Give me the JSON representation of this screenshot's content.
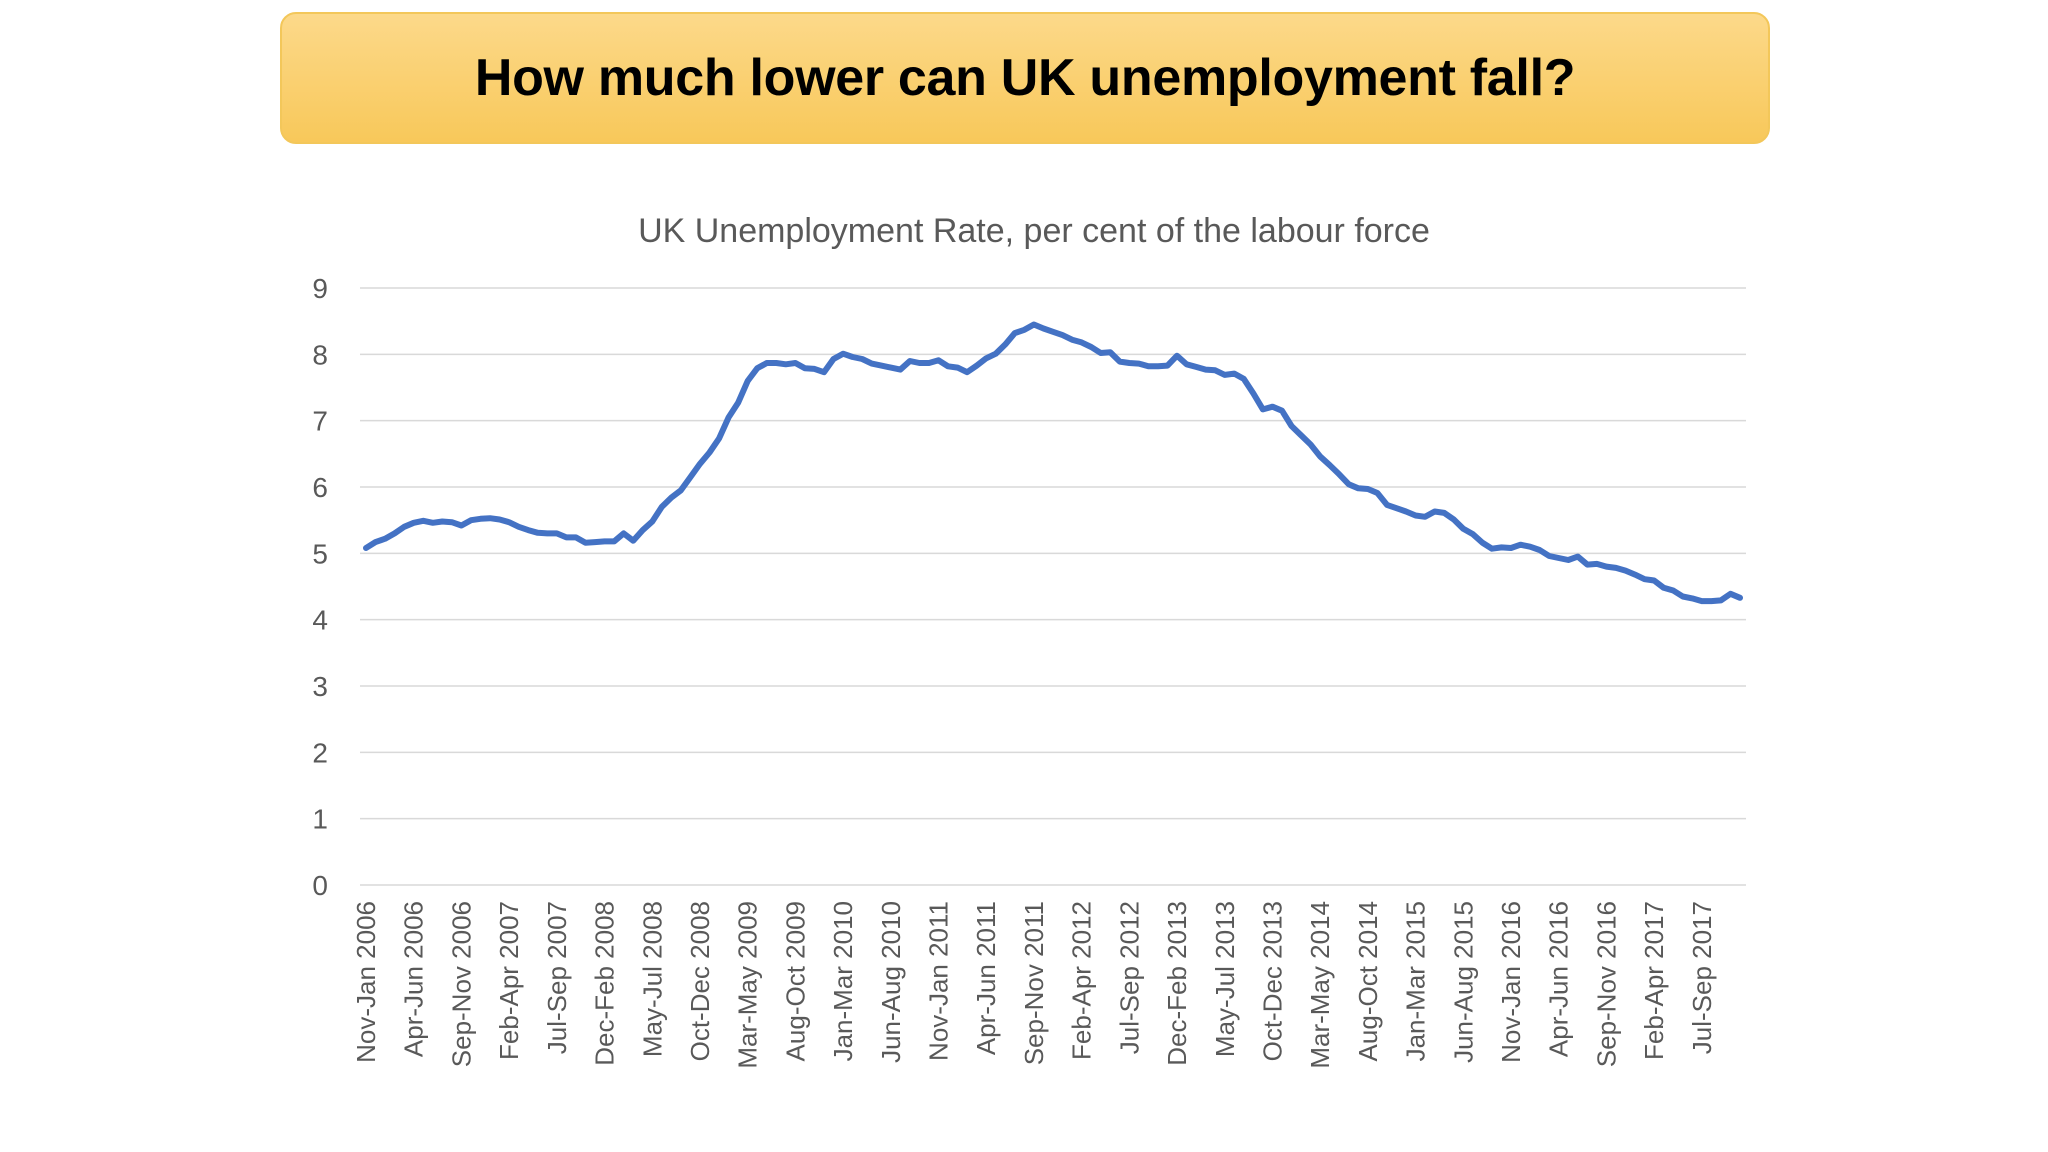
{
  "slide": {
    "title": "How much lower can UK unemployment fall?",
    "banner_color": "#fbd173"
  },
  "chart_data": {
    "type": "line",
    "title": "UK Unemployment Rate, per cent of the labour force",
    "xlabel": "",
    "ylabel": "",
    "ylim": [
      0,
      9
    ],
    "yticks": [
      0,
      1,
      2,
      3,
      4,
      5,
      6,
      7,
      8,
      9
    ],
    "grid": true,
    "legend": "none",
    "line_color": "#4472c4",
    "x_tick_labels": [
      "Nov-Jan 2006",
      "Apr-Jun 2006",
      "Sep-Nov 2006",
      "Feb-Apr 2007",
      "Jul-Sep 2007",
      "Dec-Feb 2008",
      "May-Jul 2008",
      "Oct-Dec 2008",
      "Mar-May 2009",
      "Aug-Oct 2009",
      "Jan-Mar 2010",
      "Jun-Aug 2010",
      "Nov-Jan 2011",
      "Apr-Jun 2011",
      "Sep-Nov 2011",
      "Feb-Apr 2012",
      "Jul-Sep 2012",
      "Dec-Feb 2013",
      "May-Jul 2013",
      "Oct-Dec 2013",
      "Mar-May 2014",
      "Aug-Oct 2014",
      "Jan-Mar 2015",
      "Jun-Aug 2015",
      "Nov-Jan 2016",
      "Apr-Jun 2016",
      "Sep-Nov 2016",
      "Feb-Apr 2017",
      "Jul-Sep 2017"
    ],
    "tick_every": 5,
    "series": [
      {
        "values": [
          5.08,
          5.17,
          5.22,
          5.3,
          5.4,
          5.46,
          5.49,
          5.46,
          5.48,
          5.47,
          5.42,
          5.5,
          5.52,
          5.53,
          5.51,
          5.47,
          5.4,
          5.35,
          5.31,
          5.3,
          5.3,
          5.24,
          5.24,
          5.16,
          5.17,
          5.18,
          5.18,
          5.3,
          5.19,
          5.35,
          5.48,
          5.7,
          5.84,
          5.95,
          6.15,
          6.35,
          6.52,
          6.73,
          7.05,
          7.27,
          7.6,
          7.79,
          7.87,
          7.87,
          7.85,
          7.87,
          7.79,
          7.78,
          7.73,
          7.93,
          8.01,
          7.96,
          7.93,
          7.86,
          7.83,
          7.8,
          7.77,
          7.9,
          7.87,
          7.87,
          7.91,
          7.82,
          7.8,
          7.73,
          7.83,
          7.94,
          8.01,
          8.15,
          8.32,
          8.37,
          8.45,
          8.39,
          8.34,
          8.29,
          8.22,
          8.18,
          8.11,
          8.02,
          8.03,
          7.89,
          7.87,
          7.86,
          7.82,
          7.82,
          7.83,
          7.98,
          7.85,
          7.81,
          7.77,
          7.76,
          7.69,
          7.71,
          7.63,
          7.41,
          7.17,
          7.21,
          7.15,
          6.92,
          6.78,
          6.64,
          6.46,
          6.33,
          6.19,
          6.04,
          5.98,
          5.97,
          5.91,
          5.73,
          5.68,
          5.63,
          5.57,
          5.55,
          5.63,
          5.61,
          5.51,
          5.37,
          5.29,
          5.16,
          5.07,
          5.09,
          5.08,
          5.13,
          5.1,
          5.05,
          4.96,
          4.93,
          4.9,
          4.95,
          4.83,
          4.84,
          4.8,
          4.78,
          4.74,
          4.68,
          4.61,
          4.59,
          4.48,
          4.44,
          4.35,
          4.32,
          4.28,
          4.28,
          4.29,
          4.39,
          4.33
        ]
      }
    ]
  }
}
